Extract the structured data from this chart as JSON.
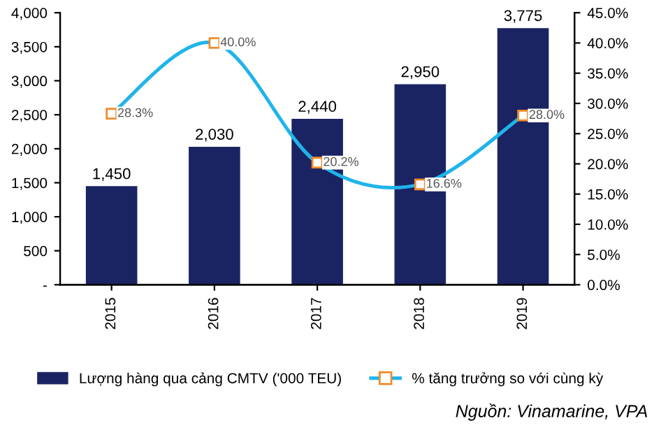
{
  "chart_data": {
    "type": "bar",
    "categories": [
      "2015",
      "2016",
      "2017",
      "2018",
      "2019"
    ],
    "series": [
      {
        "name": "Lượng hàng qua cảng CMTV ('000 TEU)",
        "color": "#1b2463",
        "values": [
          1450,
          2030,
          2440,
          2950,
          3775
        ],
        "value_labels": [
          "1,450",
          "2,030",
          "2,440",
          "2,950",
          "3,775"
        ]
      },
      {
        "name": "% tăng trưởng so với cùng kỳ",
        "type": "line",
        "axis": "y2",
        "color": "#1fb4ea",
        "marker": "square",
        "line_style": "solid",
        "values": [
          28.3,
          40.0,
          20.2,
          16.6,
          28.0
        ],
        "value_labels": [
          "28.3%",
          "40.0%",
          "20.2%",
          "16.6%",
          "28.0%"
        ]
      }
    ],
    "ylim": [
      0,
      4000
    ],
    "yticks": [
      {
        "value": 0,
        "label": "-"
      },
      500,
      {
        "value": 1000,
        "label": "1,000"
      },
      {
        "value": 1500,
        "label": "1,500"
      },
      {
        "value": 2000,
        "label": "2,000"
      },
      {
        "value": 2500,
        "label": "2,500"
      },
      {
        "value": 3000,
        "label": "3,000"
      },
      {
        "value": 3500,
        "label": "3,500"
      },
      {
        "value": 4000,
        "label": "4,000"
      }
    ],
    "y2lim": [
      0,
      45
    ],
    "y2ticks": [
      {
        "value": 0,
        "label": "0.0%"
      },
      {
        "value": 5,
        "label": "5.0%"
      },
      {
        "value": 10,
        "label": "10.0%"
      },
      {
        "value": 15,
        "label": "15.0%"
      },
      {
        "value": 20,
        "label": "20.0%"
      },
      {
        "value": 25,
        "label": "25.0%"
      },
      {
        "value": 30,
        "label": "30.0%"
      },
      {
        "value": 35,
        "label": "35.0%"
      },
      {
        "value": 40,
        "label": "40.0%"
      },
      {
        "value": 45,
        "label": "45.0%"
      }
    ],
    "grid": false,
    "legend": "bottom",
    "annotations": [
      "Nguồn: Vinamarine, VPA"
    ]
  }
}
